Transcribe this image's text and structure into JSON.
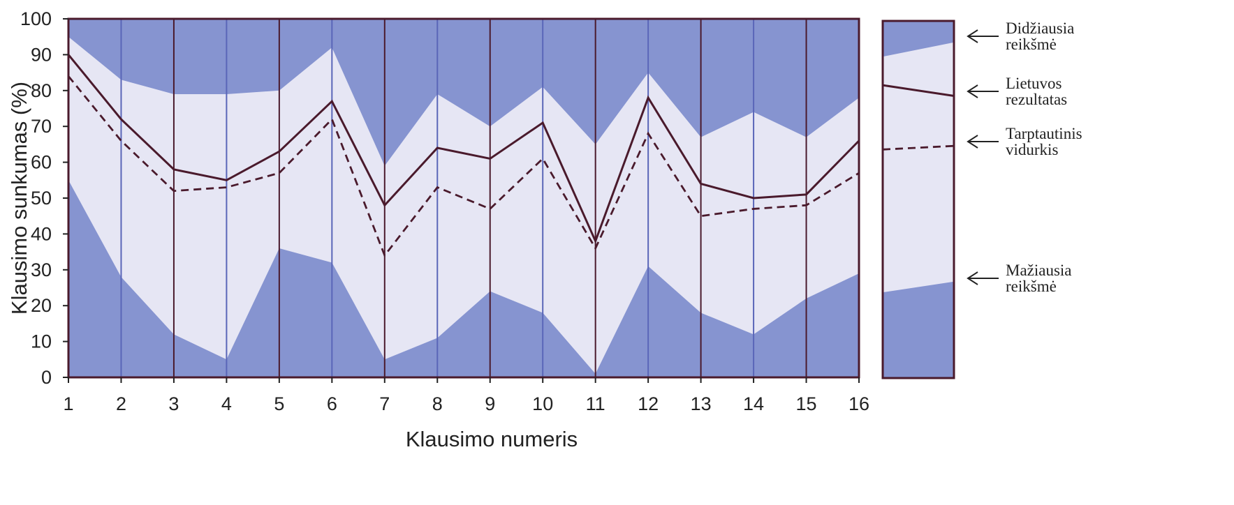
{
  "chart_data": {
    "type": "area",
    "x": [
      1,
      2,
      3,
      4,
      5,
      6,
      7,
      8,
      9,
      10,
      11,
      12,
      13,
      14,
      15,
      16
    ],
    "x_tick_labels": [
      "1",
      "2",
      "3",
      "4",
      "5",
      "6",
      "7",
      "8",
      "9",
      "10",
      "11",
      "12",
      "13",
      "14",
      "15",
      "16"
    ],
    "y_tick_labels": [
      "0",
      "10",
      "20",
      "30",
      "40",
      "50",
      "60",
      "70",
      "80",
      "90",
      "100"
    ],
    "xlabel": "Klausimo numeris",
    "ylabel": "Klausimo sunkumas (%)",
    "xlim": [
      1,
      16
    ],
    "ylim": [
      0,
      100
    ],
    "grid": "vertical",
    "series": [
      {
        "key": "max",
        "values": [
          95,
          83,
          79,
          79,
          80,
          92,
          59,
          79,
          70,
          81,
          65,
          85,
          67,
          74,
          67,
          78
        ]
      },
      {
        "key": "min",
        "values": [
          55,
          28,
          12,
          5,
          36,
          32,
          5,
          11,
          24,
          18,
          1,
          31,
          18,
          12,
          22,
          29
        ]
      },
      {
        "key": "lithuania",
        "values": [
          90,
          72,
          58,
          55,
          63,
          77,
          48,
          64,
          61,
          71,
          38,
          78,
          54,
          50,
          51,
          66
        ]
      },
      {
        "key": "international",
        "values": [
          84,
          66,
          52,
          53,
          57,
          72,
          34,
          53,
          47,
          61,
          36,
          68,
          45,
          47,
          48,
          57
        ]
      }
    ],
    "legend": {
      "placement": "right",
      "items": [
        {
          "key": "max",
          "label_lines": [
            "Didžiausia",
            "reikšmė"
          ]
        },
        {
          "key": "lithuania",
          "label_lines": [
            "Lietuvos",
            "rezultatas"
          ]
        },
        {
          "key": "international",
          "label_lines": [
            "Tarptautinis",
            "vidurkis"
          ]
        },
        {
          "key": "min",
          "label_lines": [
            "Mažiausia",
            "reikšmė"
          ]
        }
      ]
    },
    "colors": {
      "outer_band": "#8694d0",
      "inner_band": "#e6e6f4",
      "line": "#4a1a2c",
      "frame": "#4a1a2c"
    }
  }
}
